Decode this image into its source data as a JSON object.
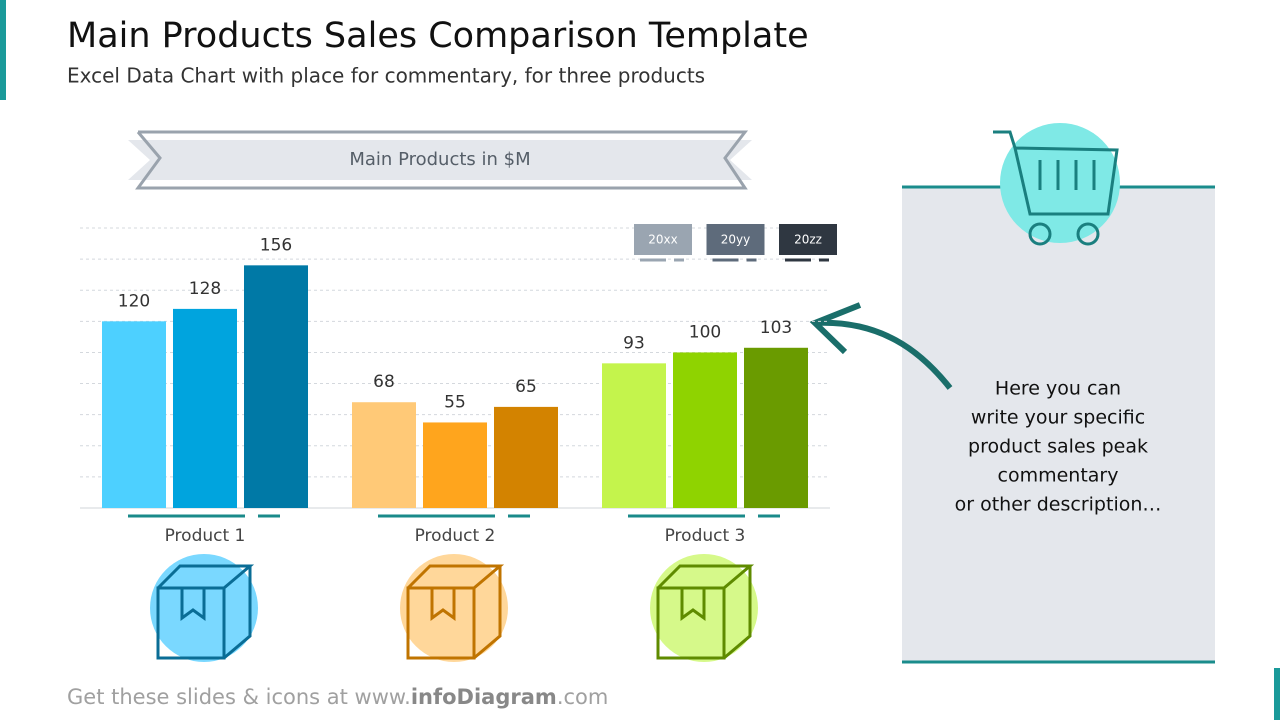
{
  "slide": {
    "title": "Main Products Sales Comparison Template",
    "subtitle": "Excel Data Chart with place for commentary, for three products"
  },
  "chart_data": {
    "type": "bar",
    "title": "Main Products in $M",
    "categories": [
      "Product 1",
      "Product 2",
      "Product 3"
    ],
    "series": [
      {
        "name": "20xx",
        "color": "#9aa5b1",
        "bar_colors": [
          "#4dd0ff",
          "#ffc977",
          "#c4f44c"
        ],
        "values": [
          120,
          68,
          93
        ]
      },
      {
        "name": "20yy",
        "color": "#5e6b7b",
        "bar_colors": [
          "#00a4de",
          "#ffa51d",
          "#8fd300"
        ],
        "values": [
          128,
          55,
          100
        ]
      },
      {
        "name": "20zz",
        "color": "#2f3741",
        "bar_colors": [
          "#0079a6",
          "#d38300",
          "#6a9b00"
        ],
        "values": [
          156,
          65,
          103
        ]
      }
    ],
    "ylim": [
      0,
      180
    ],
    "gridlines": [
      20,
      40,
      60,
      80,
      100,
      120,
      140,
      160,
      180
    ],
    "grid": true
  },
  "commentary": [
    "Here you can",
    "write your specific",
    "product sales peak",
    "commentary",
    "or other description…"
  ],
  "footer": [
    "Get these slides & icons at www.",
    "infoDiagram",
    ".com"
  ]
}
